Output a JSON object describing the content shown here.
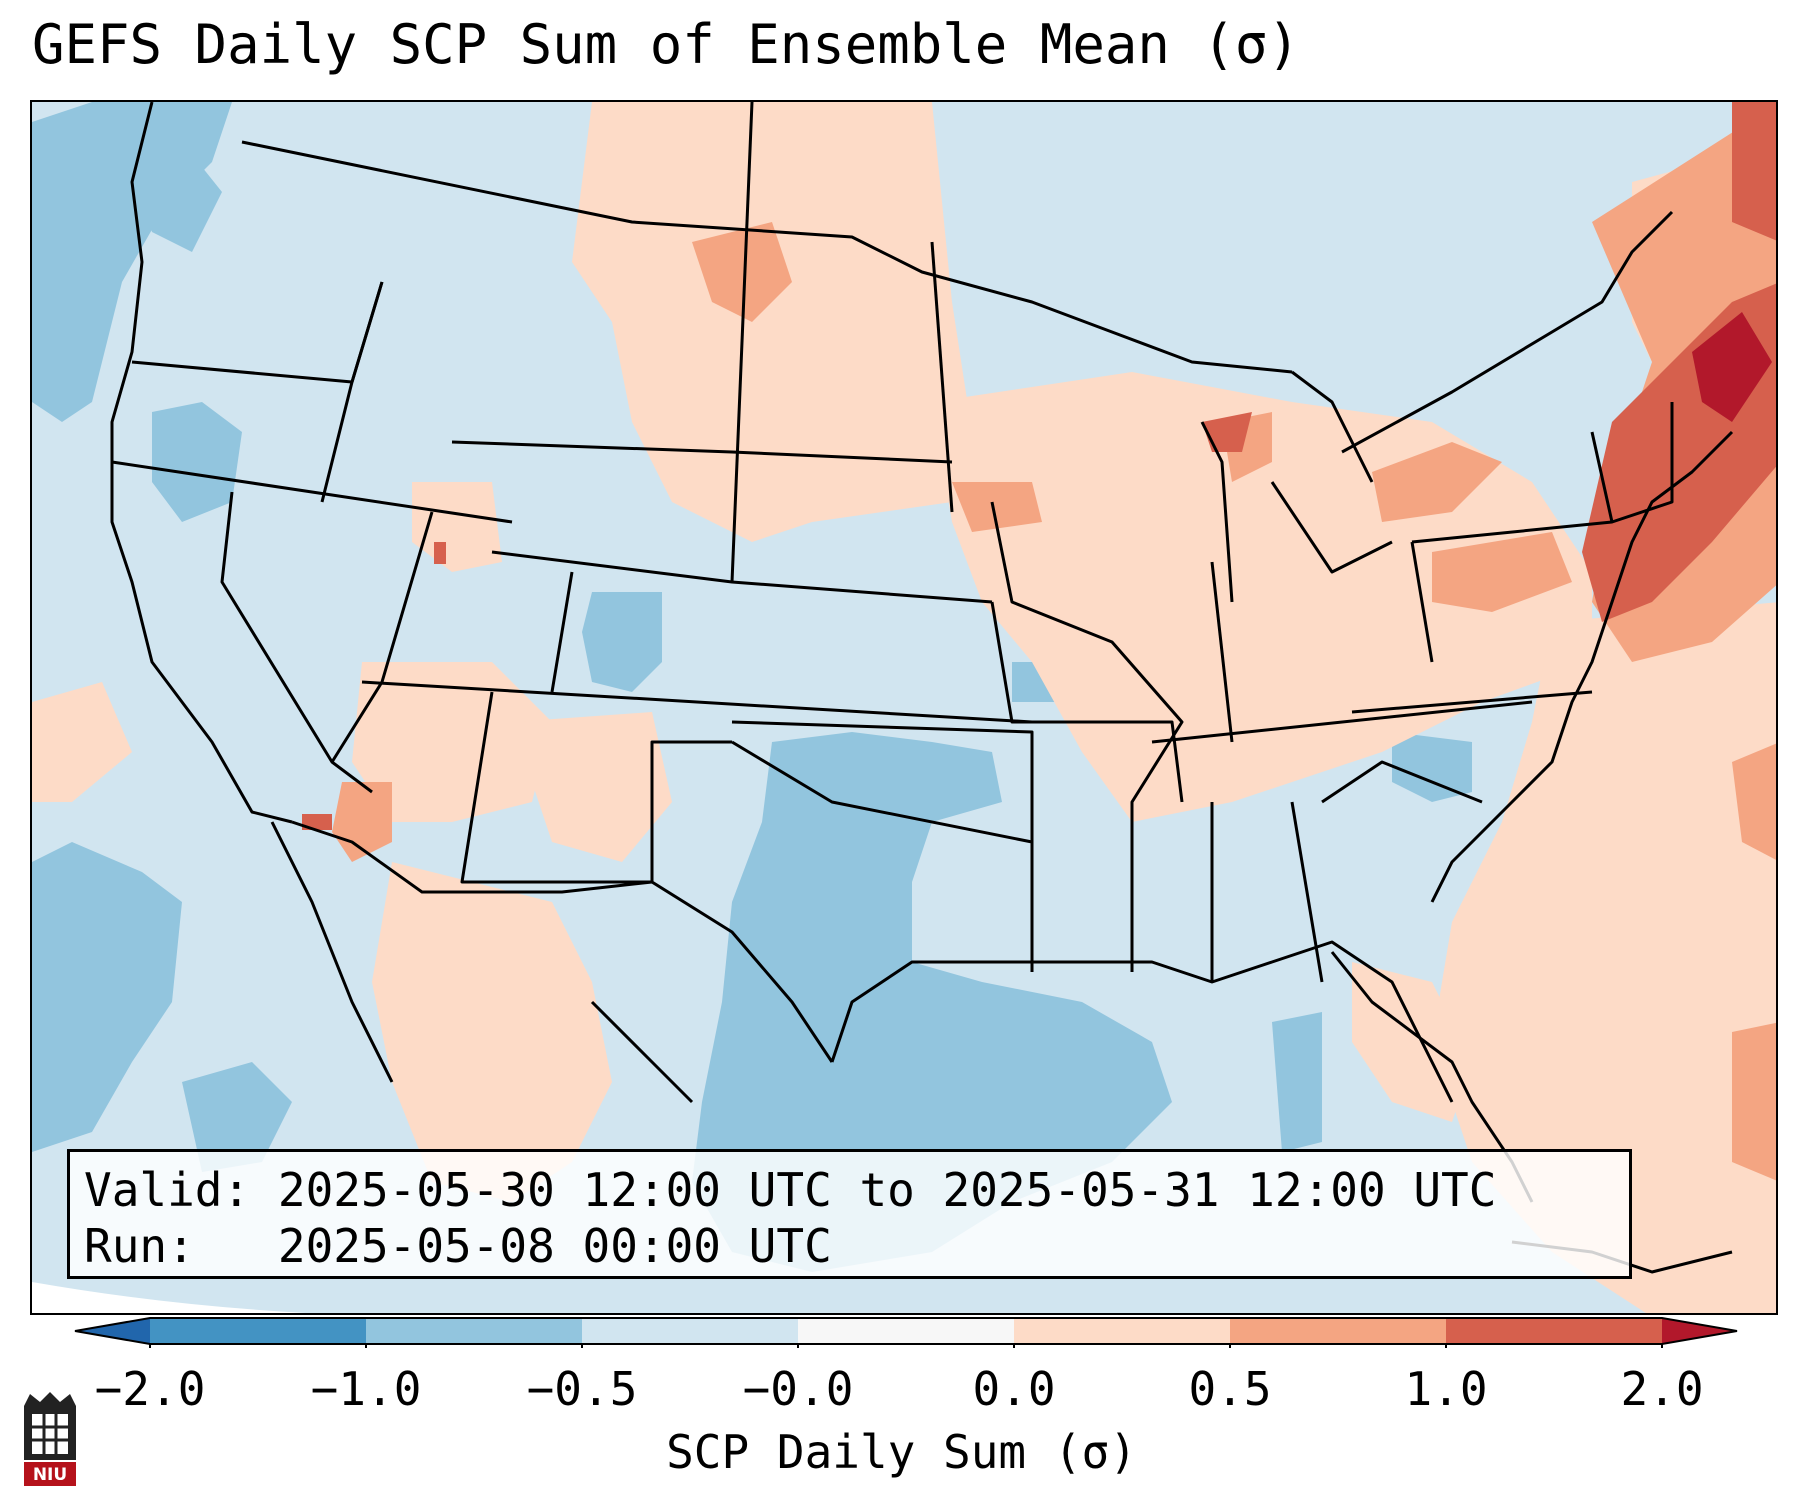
{
  "title": "GEFS Daily SCP Sum of Ensemble Mean (σ)",
  "info": {
    "valid_label": "Valid:",
    "valid_value": "2025-05-30 12:00 UTC to 2025-05-31 12:00 UTC",
    "run_label": "Run:",
    "run_value": "2025-05-08 00:00 UTC"
  },
  "colorbar": {
    "label": "SCP Daily Sum (σ)",
    "ticks": [
      "−2.0",
      "−1.0",
      "−0.5",
      "−0.0",
      "0.0",
      "0.5",
      "1.0",
      "2.0"
    ],
    "colors": [
      "#4393c3",
      "#92c5de",
      "#d1e5f0",
      "#f7f7f7",
      "#fddbc7",
      "#f4a582",
      "#d6604d"
    ],
    "under_color": "#2166ac",
    "over_color": "#b2182b",
    "extend": "both"
  },
  "map": {
    "projection": "conus lambert conformal",
    "background_class": "-0.5 to 0.0",
    "features": [
      "state borders",
      "coastlines",
      "country borders"
    ]
  },
  "logo": {
    "text": "NIU"
  }
}
